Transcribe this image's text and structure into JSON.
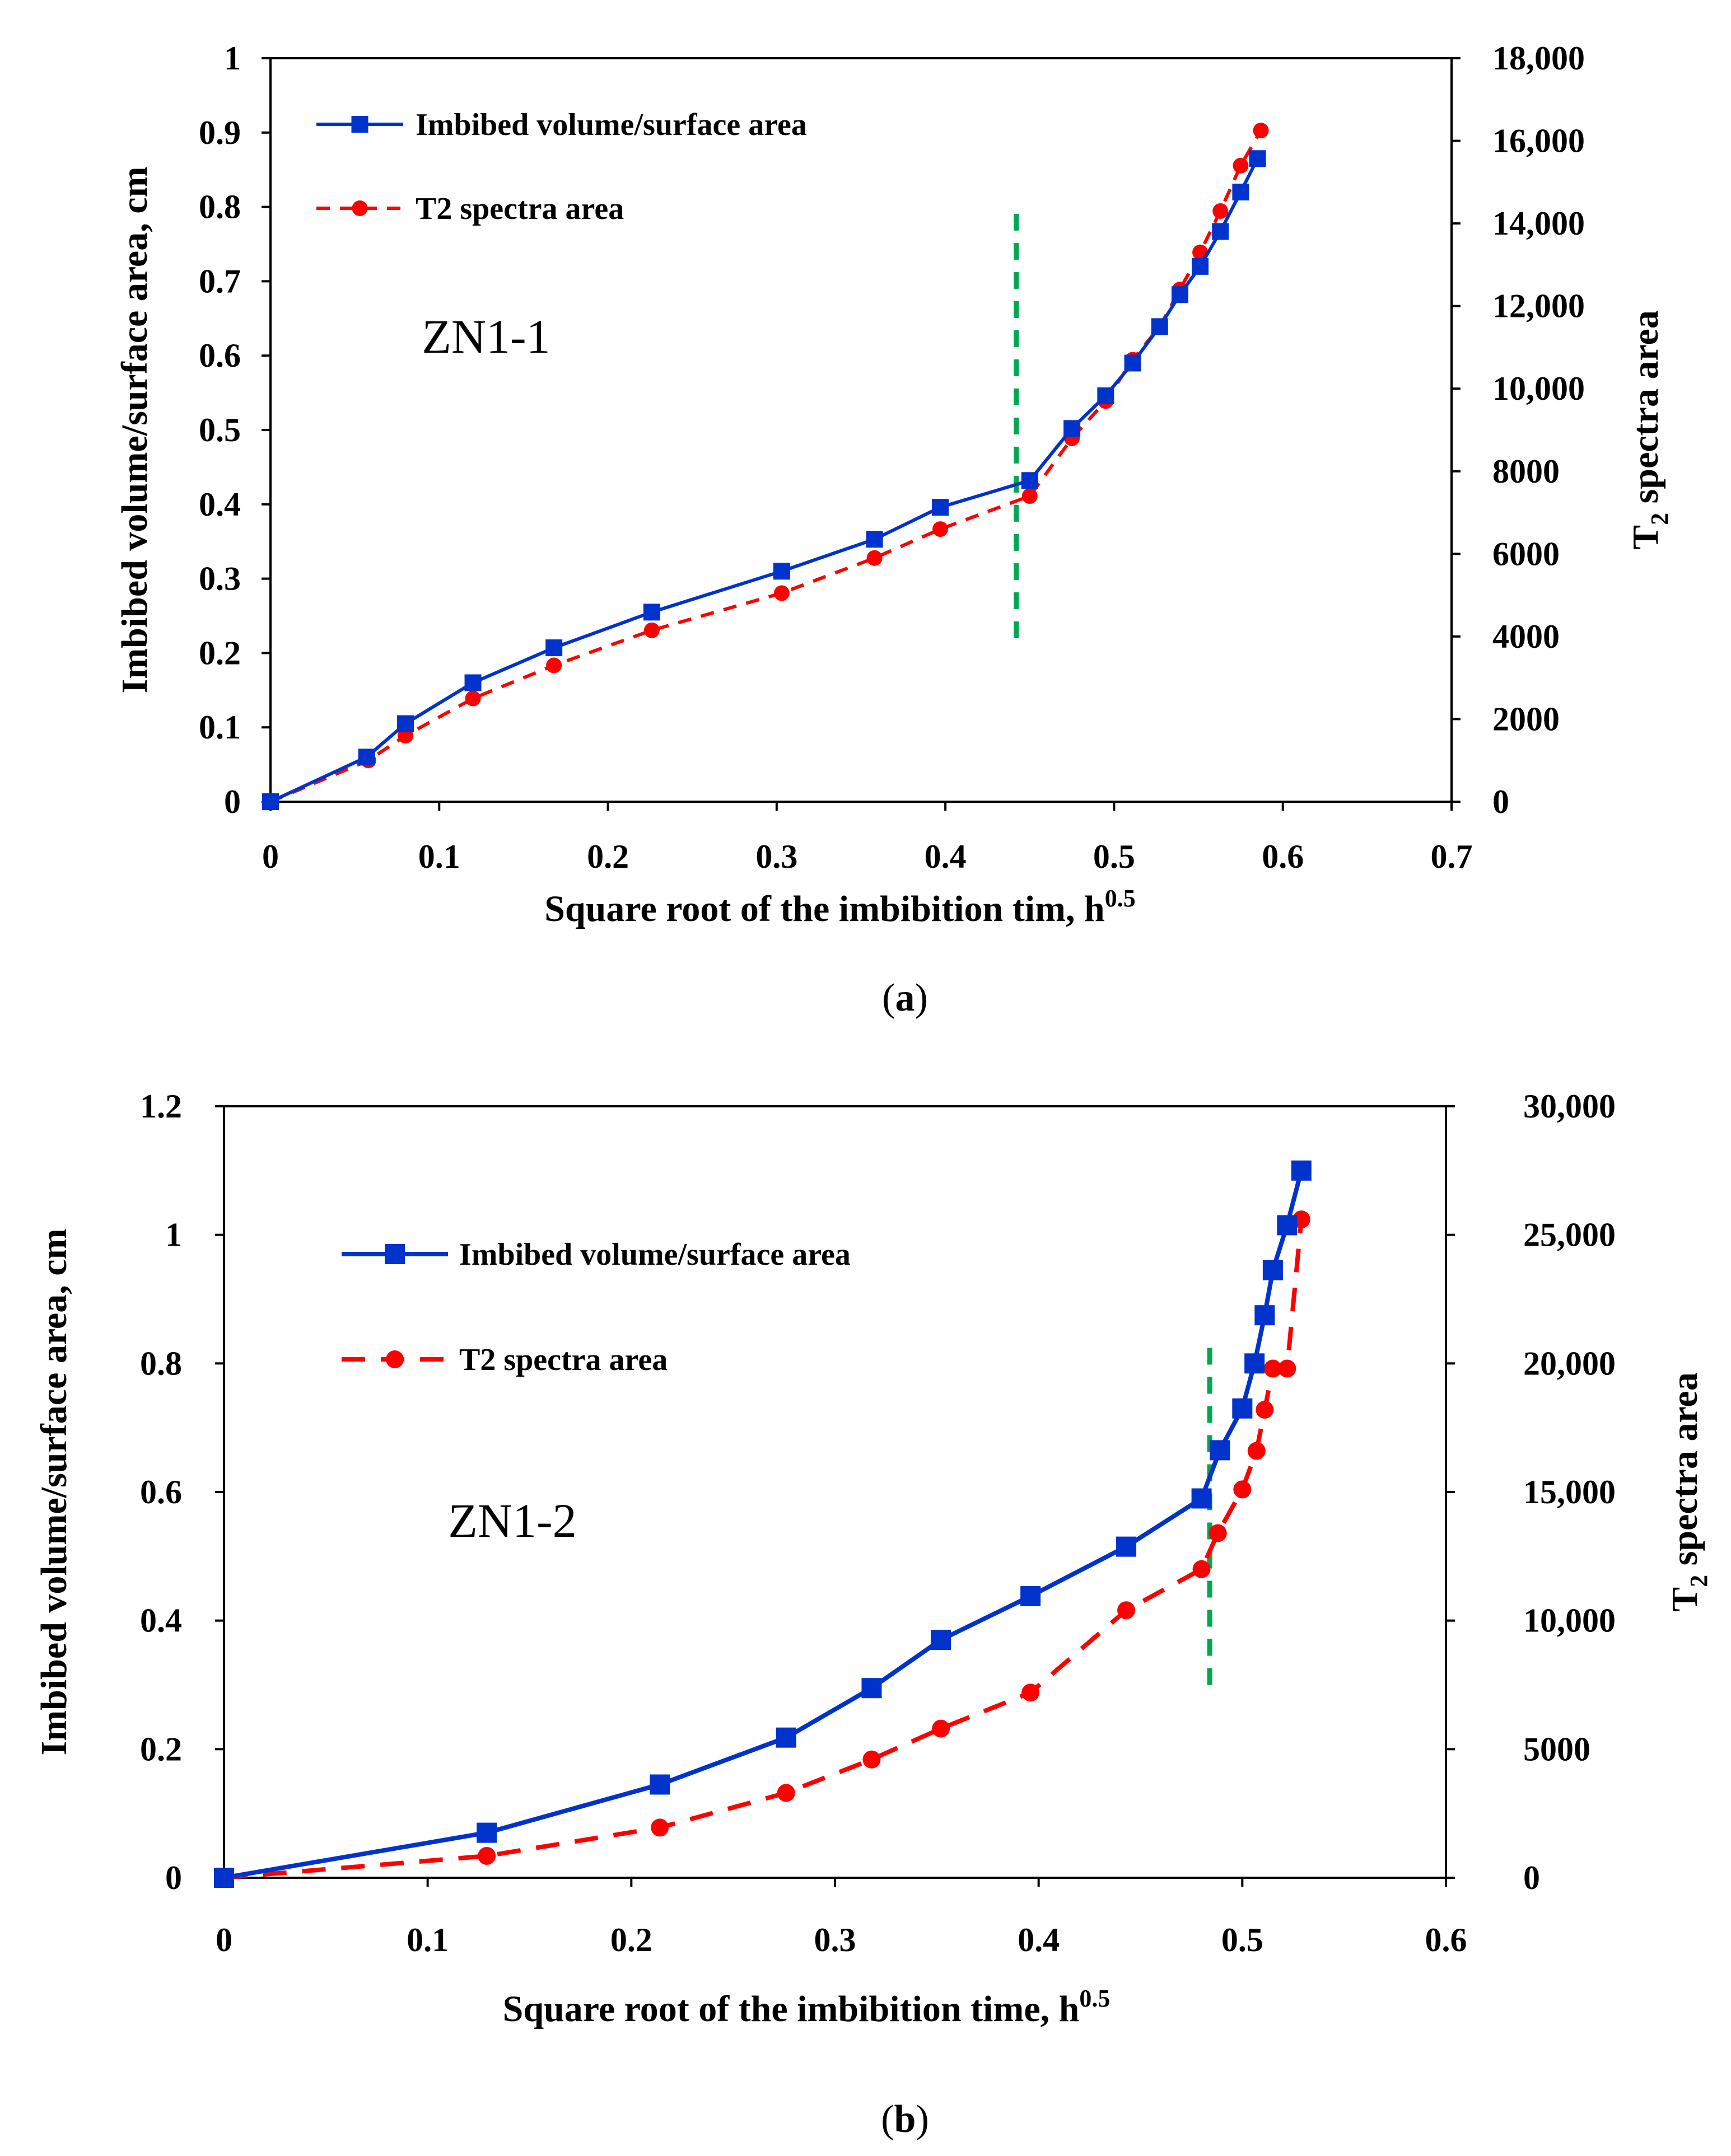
{
  "chart_data": [
    {
      "type": "line",
      "panel": "a",
      "caption_letter": "a",
      "annotation": "ZN1-1",
      "xlabel": "Square root of the imbibition tim, h",
      "xlabel_sup": "0.5",
      "ylabel": "Imbibed volume/surface area, cm",
      "y2label": "T",
      "y2label_sub": "2",
      "y2label_rest": " spectra area",
      "xlim": [
        0,
        0.7
      ],
      "ylim": [
        0,
        1
      ],
      "y2lim": [
        0,
        18000
      ],
      "xticks": [
        "0",
        "0.1",
        "0.2",
        "0.3",
        "0.4",
        "0.5",
        "0.6",
        "0.7"
      ],
      "yticks": [
        "0",
        "0.1",
        "0.2",
        "0.3",
        "0.4",
        "0.5",
        "0.6",
        "0.7",
        "0.8",
        "0.9",
        "1"
      ],
      "y2ticks": [
        "0",
        "2000",
        "4000",
        "6000",
        "8000",
        "10,000",
        "12,000",
        "14,000",
        "16,000",
        "18,000"
      ],
      "vline": {
        "x": 0.442,
        "y_from": 0.22,
        "y_to": 0.8,
        "color": "#00a651"
      },
      "series": [
        {
          "name": "Imbibed volume/surface area",
          "axis": "left",
          "color": "#0033cc",
          "marker": "square",
          "dash": "solid",
          "x": [
            0,
            0.057,
            0.08,
            0.12,
            0.168,
            0.226,
            0.303,
            0.358,
            0.397,
            0.45,
            0.475,
            0.495,
            0.511,
            0.527,
            0.539,
            0.551,
            0.563,
            0.575,
            0.585
          ],
          "y": [
            0,
            0.06,
            0.105,
            0.16,
            0.207,
            0.255,
            0.31,
            0.353,
            0.396,
            0.432,
            0.502,
            0.546,
            0.59,
            0.639,
            0.682,
            0.72,
            0.767,
            0.82,
            0.865
          ]
        },
        {
          "name": "T2 spectra area",
          "axis": "right",
          "color": "#ff0000",
          "marker": "circle",
          "dash": "dashed",
          "x": [
            0,
            0.058,
            0.08,
            0.12,
            0.168,
            0.226,
            0.303,
            0.358,
            0.397,
            0.45,
            0.475,
            0.495,
            0.511,
            0.527,
            0.539,
            0.551,
            0.563,
            0.575,
            0.587
          ],
          "y": [
            0,
            1000,
            1600,
            2500,
            3300,
            4150,
            5050,
            5900,
            6600,
            7400,
            8800,
            9700,
            10700,
            11500,
            12400,
            13300,
            14300,
            15400,
            16250
          ]
        }
      ]
    },
    {
      "type": "line",
      "panel": "b",
      "caption_letter": "b",
      "annotation": "ZN1-2",
      "xlabel": "Square root of the imbibition time, h",
      "xlabel_sup": "0.5",
      "ylabel": "Imbibed volume/surface area, cm",
      "y2label": "T",
      "y2label_sub": "2",
      "y2label_rest": " spectra area",
      "xlim": [
        0,
        0.6
      ],
      "ylim": [
        0,
        1.2
      ],
      "y2lim": [
        0,
        30000
      ],
      "xticks": [
        "0",
        "0.1",
        "0.2",
        "0.3",
        "0.4",
        "0.5",
        "0.6"
      ],
      "yticks": [
        "0",
        "0.2",
        "0.4",
        "0.6",
        "0.8",
        "1",
        "1.2"
      ],
      "y2ticks": [
        "0",
        "5000",
        "10,000",
        "15,000",
        "20,000",
        "25,000",
        "30,000"
      ],
      "vline": {
        "x": 0.484,
        "y_from": 0.3,
        "y_to": 0.84,
        "color": "#00a651"
      },
      "series": [
        {
          "name": "Imbibed volume/surface area",
          "axis": "left",
          "color": "#0033cc",
          "marker": "square",
          "dash": "solid",
          "x": [
            0,
            0.129,
            0.214,
            0.276,
            0.318,
            0.352,
            0.396,
            0.443,
            0.48,
            0.489,
            0.5,
            0.506,
            0.511,
            0.515,
            0.522,
            0.529
          ],
          "y": [
            0,
            0.07,
            0.145,
            0.218,
            0.295,
            0.37,
            0.438,
            0.515,
            0.59,
            0.665,
            0.73,
            0.8,
            0.875,
            0.945,
            1.015,
            1.1
          ]
        },
        {
          "name": "T2 spectra area",
          "axis": "right",
          "color": "#ff0000",
          "marker": "circle",
          "dash": "dashed",
          "x": [
            0,
            0.129,
            0.214,
            0.276,
            0.318,
            0.352,
            0.396,
            0.443,
            0.48,
            0.488,
            0.5,
            0.507,
            0.511,
            0.515,
            0.522,
            0.529
          ],
          "y": [
            0,
            850,
            1950,
            3300,
            4600,
            5800,
            7200,
            10400,
            12000,
            13400,
            15100,
            16600,
            18200,
            19800,
            19800,
            25600
          ]
        }
      ]
    }
  ]
}
